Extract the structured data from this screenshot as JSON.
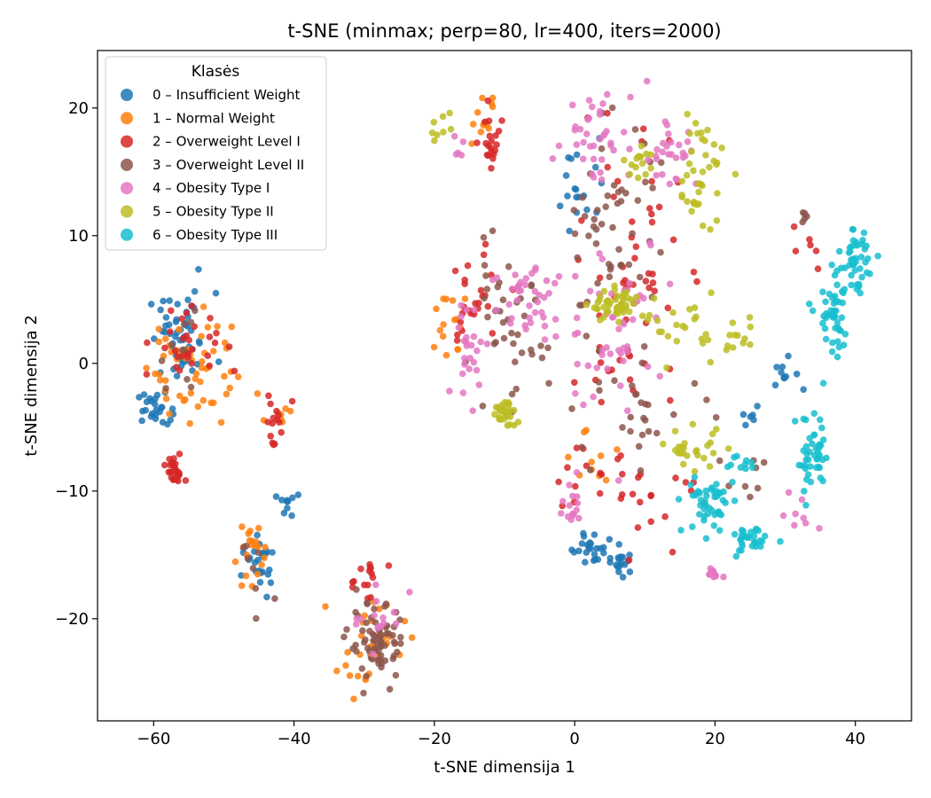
{
  "chart_data": {
    "type": "scatter",
    "title": "t-SNE (minmax; perp=80, lr=400, iters=2000)",
    "xlabel": "t-SNE dimensija 1",
    "ylabel": "t-SNE dimensija 2",
    "xlim": [
      -68,
      48
    ],
    "ylim": [
      -28,
      24.5
    ],
    "xticks": [
      -60,
      -40,
      -20,
      0,
      20,
      40
    ],
    "yticks": [
      -20,
      -10,
      0,
      10,
      20
    ],
    "xtick_labels": [
      "−60",
      "−40",
      "−20",
      "0",
      "20",
      "40"
    ],
    "ytick_labels": [
      "−20",
      "−10",
      "0",
      "10",
      "20"
    ],
    "grid": false,
    "legend": {
      "title": "Klasės",
      "position": "top-left"
    },
    "series": [
      {
        "name": "0 – Insufficient Weight",
        "color": "#1f77b4",
        "clusters": [
          {
            "center": [
              -56,
              2
            ],
            "spread": [
              4,
              3
            ],
            "n": 50
          },
          {
            "center": [
              -60,
              -3.5
            ],
            "spread": [
              2,
              1
            ],
            "n": 25
          },
          {
            "center": [
              -45,
              -16
            ],
            "spread": [
              2,
              2
            ],
            "n": 25
          },
          {
            "center": [
              -41,
              -11
            ],
            "spread": [
              1,
              1
            ],
            "n": 10
          },
          {
            "center": [
              3,
              -14.5
            ],
            "spread": [
              3,
              1
            ],
            "n": 25
          },
          {
            "center": [
              7,
              -15.5
            ],
            "spread": [
              1,
              1
            ],
            "n": 15
          },
          {
            "center": [
              30,
              -1
            ],
            "spread": [
              3,
              1.5
            ],
            "n": 10
          },
          {
            "center": [
              1,
              14
            ],
            "spread": [
              3,
              3
            ],
            "n": 18
          },
          {
            "center": [
              25,
              -4
            ],
            "spread": [
              2,
              1
            ],
            "n": 6
          }
        ]
      },
      {
        "name": "1 – Normal Weight",
        "color": "#ff7f0e",
        "clusters": [
          {
            "center": [
              -55,
              0
            ],
            "spread": [
              5,
              4
            ],
            "n": 55
          },
          {
            "center": [
              -46,
              -15
            ],
            "spread": [
              2,
              2.5
            ],
            "n": 20
          },
          {
            "center": [
              -29,
              -22
            ],
            "spread": [
              4,
              3
            ],
            "n": 30
          },
          {
            "center": [
              -18,
              3
            ],
            "spread": [
              2,
              3
            ],
            "n": 15
          },
          {
            "center": [
              -13,
              19
            ],
            "spread": [
              2,
              1.5
            ],
            "n": 12
          },
          {
            "center": [
              2,
              -7
            ],
            "spread": [
              3,
              2
            ],
            "n": 10
          },
          {
            "center": [
              -43,
              -4
            ],
            "spread": [
              3,
              1
            ],
            "n": 8
          }
        ]
      },
      {
        "name": "2 – Overweight Level I",
        "color": "#d62728",
        "clusters": [
          {
            "center": [
              -57,
              -8.5
            ],
            "spread": [
              1,
              1
            ],
            "n": 30
          },
          {
            "center": [
              -55,
              1.5
            ],
            "spread": [
              4,
              3
            ],
            "n": 30
          },
          {
            "center": [
              -43,
              -4
            ],
            "spread": [
              2,
              1.5
            ],
            "n": 15
          },
          {
            "center": [
              -30,
              -17
            ],
            "spread": [
              2,
              2
            ],
            "n": 15
          },
          {
            "center": [
              -12,
              17
            ],
            "spread": [
              1.5,
              2
            ],
            "n": 20
          },
          {
            "center": [
              -15,
              5
            ],
            "spread": [
              4,
              4
            ],
            "n": 25
          },
          {
            "center": [
              8,
              6
            ],
            "spread": [
              6,
              10
            ],
            "n": 60
          },
          {
            "center": [
              12,
              -10
            ],
            "spread": [
              6,
              3
            ],
            "n": 20
          },
          {
            "center": [
              33,
              9
            ],
            "spread": [
              2,
              1.5
            ],
            "n": 6
          },
          {
            "center": [
              1,
              -10
            ],
            "spread": [
              3,
              3
            ],
            "n": 10
          }
        ]
      },
      {
        "name": "3 – Overweight Level II",
        "color": "#8c564b",
        "clusters": [
          {
            "center": [
              -28,
              -22
            ],
            "spread": [
              3.5,
              2.5
            ],
            "n": 70
          },
          {
            "center": [
              -10,
              2
            ],
            "spread": [
              5,
              5
            ],
            "n": 40
          },
          {
            "center": [
              5,
              10
            ],
            "spread": [
              6,
              8
            ],
            "n": 55
          },
          {
            "center": [
              10,
              -4
            ],
            "spread": [
              8,
              3
            ],
            "n": 25
          },
          {
            "center": [
              -45,
              -16
            ],
            "spread": [
              2,
              2
            ],
            "n": 8
          },
          {
            "center": [
              -57,
              1
            ],
            "spread": [
              3,
              3
            ],
            "n": 10
          },
          {
            "center": [
              33,
              11.5
            ],
            "spread": [
              1,
              0.5
            ],
            "n": 5
          },
          {
            "center": [
              25,
              -9
            ],
            "spread": [
              3,
              3
            ],
            "n": 8
          }
        ]
      },
      {
        "name": "4 – Obesity Type I",
        "color": "#e377c2",
        "clusters": [
          {
            "center": [
              -15,
              1
            ],
            "spread": [
              2,
              3
            ],
            "n": 25
          },
          {
            "center": [
              -6,
              5
            ],
            "spread": [
              5,
              3
            ],
            "n": 40
          },
          {
            "center": [
              3,
              18
            ],
            "spread": [
              4,
              3
            ],
            "n": 35
          },
          {
            "center": [
              13,
              17
            ],
            "spread": [
              4,
              3
            ],
            "n": 30
          },
          {
            "center": [
              6,
              3
            ],
            "spread": [
              6,
              6
            ],
            "n": 50
          },
          {
            "center": [
              0,
              -11
            ],
            "spread": [
              1.5,
              1.5
            ],
            "n": 15
          },
          {
            "center": [
              20,
              -16.5
            ],
            "spread": [
              2,
              0.3
            ],
            "n": 10
          },
          {
            "center": [
              -28,
              -20
            ],
            "spread": [
              3,
              2
            ],
            "n": 15
          },
          {
            "center": [
              33,
              -12
            ],
            "spread": [
              2,
              2
            ],
            "n": 8
          },
          {
            "center": [
              -17,
              17
            ],
            "spread": [
              1,
              1
            ],
            "n": 5
          }
        ]
      },
      {
        "name": "5 – Obesity Type II",
        "color": "#bcbd22",
        "clusters": [
          {
            "center": [
              -10,
              -4
            ],
            "spread": [
              1.5,
              1
            ],
            "n": 30
          },
          {
            "center": [
              6,
              4.5
            ],
            "spread": [
              3,
              1
            ],
            "n": 45
          },
          {
            "center": [
              15,
              3
            ],
            "spread": [
              4,
              2
            ],
            "n": 25
          },
          {
            "center": [
              18,
              15
            ],
            "spread": [
              3,
              4
            ],
            "n": 40
          },
          {
            "center": [
              9,
              16
            ],
            "spread": [
              2,
              1
            ],
            "n": 15
          },
          {
            "center": [
              17,
              -7
            ],
            "spread": [
              4,
              1.5
            ],
            "n": 25
          },
          {
            "center": [
              -19,
              18.5
            ],
            "spread": [
              1.5,
              1
            ],
            "n": 8
          },
          {
            "center": [
              23,
              2
            ],
            "spread": [
              2,
              1.5
            ],
            "n": 12
          }
        ]
      },
      {
        "name": "6 – Obesity Type III",
        "color": "#17becf",
        "clusters": [
          {
            "center": [
              40,
              8
            ],
            "spread": [
              1.5,
              2
            ],
            "n": 45
          },
          {
            "center": [
              37,
              3.5
            ],
            "spread": [
              2,
              2.5
            ],
            "n": 45
          },
          {
            "center": [
              34,
              -7.5
            ],
            "spread": [
              2,
              3
            ],
            "n": 45
          },
          {
            "center": [
              19,
              -11
            ],
            "spread": [
              3,
              2
            ],
            "n": 45
          },
          {
            "center": [
              25,
              -14
            ],
            "spread": [
              2,
              1
            ],
            "n": 30
          },
          {
            "center": [
              23,
              -8
            ],
            "spread": [
              2,
              1
            ],
            "n": 10
          }
        ]
      }
    ]
  }
}
